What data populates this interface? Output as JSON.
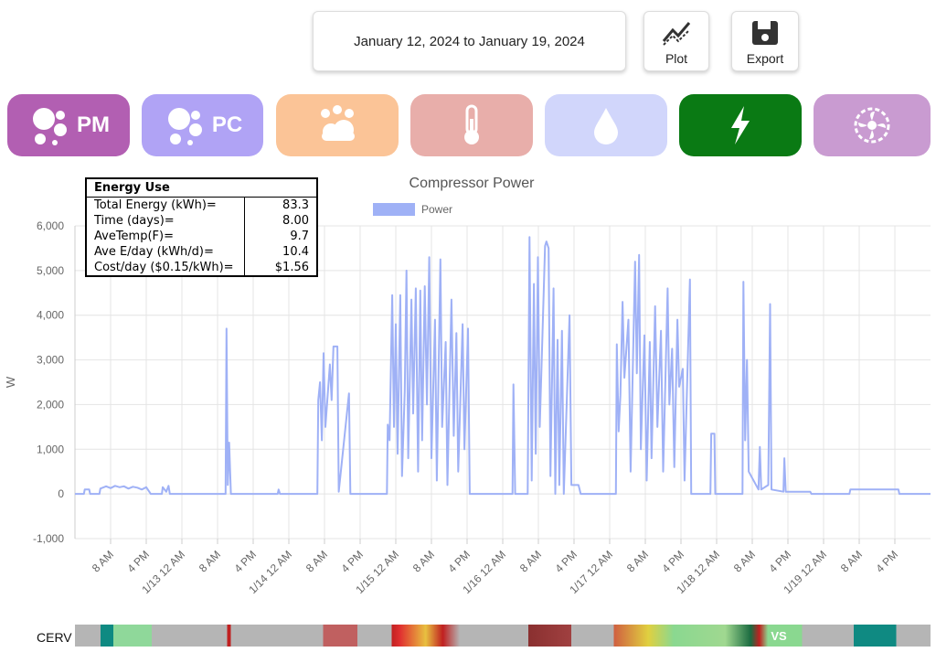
{
  "toolbar": {
    "date_range": "January 12, 2024 to January 19, 2024",
    "plot": "Plot",
    "export": "Export"
  },
  "tabs": {
    "pm": "PM",
    "pc": "PC"
  },
  "energy_table": {
    "title": "Energy Use",
    "rows": [
      [
        "Total Energy (kWh)=",
        "83.3"
      ],
      [
        "Time (days)=",
        "8.00"
      ],
      [
        "AveTemp(F)=",
        "9.7"
      ],
      [
        "Ave E/day (kWh/d)=",
        "10.4"
      ],
      [
        "Cost/day ($0.15/kWh)=",
        "$1.56"
      ]
    ]
  },
  "chart_data": {
    "type": "line",
    "title": "Compressor Power",
    "y_label": "W",
    "grid": true,
    "xlim": [
      0,
      192
    ],
    "xticks": [
      {
        "value": 8,
        "label": "8 AM"
      },
      {
        "value": 16,
        "label": "4 PM"
      },
      {
        "value": 24,
        "label": "1/13 12 AM"
      },
      {
        "value": 32,
        "label": "8 AM"
      },
      {
        "value": 40,
        "label": "4 PM"
      },
      {
        "value": 48,
        "label": "1/14 12 AM"
      },
      {
        "value": 56,
        "label": "8 AM"
      },
      {
        "value": 64,
        "label": "4 PM"
      },
      {
        "value": 72,
        "label": "1/15 12 AM"
      },
      {
        "value": 80,
        "label": "8 AM"
      },
      {
        "value": 88,
        "label": "4 PM"
      },
      {
        "value": 96,
        "label": "1/16 12 AM"
      },
      {
        "value": 104,
        "label": "8 AM"
      },
      {
        "value": 112,
        "label": "4 PM"
      },
      {
        "value": 120,
        "label": "1/17 12 AM"
      },
      {
        "value": 128,
        "label": "8 AM"
      },
      {
        "value": 136,
        "label": "4 PM"
      },
      {
        "value": 144,
        "label": "1/18 12 AM"
      },
      {
        "value": 152,
        "label": "8 AM"
      },
      {
        "value": 160,
        "label": "4 PM"
      },
      {
        "value": 168,
        "label": "1/19 12 AM"
      },
      {
        "value": 176,
        "label": "8 AM"
      },
      {
        "value": 184,
        "label": "4 PM"
      }
    ],
    "ylim": [
      -1000,
      6000
    ],
    "yticks": [
      {
        "value": -1000,
        "label": "-1,000"
      },
      0,
      {
        "value": 1000,
        "label": "1,000"
      },
      {
        "value": 2000,
        "label": "2,000"
      },
      {
        "value": 3000,
        "label": "3,000"
      },
      {
        "value": 4000,
        "label": "4,000"
      },
      {
        "value": 5000,
        "label": "5,000"
      },
      {
        "value": 6000,
        "label": "6,000"
      }
    ],
    "x": [
      0,
      2,
      2.2,
      3.2,
      3.4,
      5.5,
      5.7,
      7,
      8,
      9,
      10,
      11,
      12,
      13,
      14,
      15,
      16,
      17,
      19.5,
      19.7,
      20.5,
      21,
      21.3,
      33.8,
      34,
      34.3,
      34.6,
      35,
      45.5,
      45.7,
      46,
      54.4,
      54.6,
      55,
      55.4,
      55.8,
      56.2,
      57.2,
      57.6,
      58,
      58.9,
      59.2,
      61.5,
      61.8,
      70,
      70.2,
      70.6,
      71.2,
      71.6,
      72,
      72.4,
      73,
      73.4,
      74,
      74.4,
      74.8,
      75.5,
      75.9,
      76.5,
      77,
      77.5,
      77.9,
      78.5,
      79,
      79.5,
      80,
      80.8,
      81.2,
      82,
      82.4,
      83.2,
      83.6,
      84.5,
      85,
      85.6,
      86,
      87,
      87.4,
      88.2,
      88.6,
      98.2,
      98.4,
      98.8,
      101.6,
      102,
      102.5,
      103,
      103.4,
      103.9,
      104.3,
      105.5,
      105.8,
      106.3,
      106.7,
      107.4,
      107.8,
      108.3,
      108.7,
      109.3,
      109.7,
      111,
      111.4,
      113,
      113.5,
      121.4,
      121.6,
      122,
      122.4,
      122.9,
      123.3,
      124.2,
      124.7,
      125.7,
      126.1,
      126.6,
      127,
      127.8,
      128.3,
      129,
      129.4,
      130.2,
      130.7,
      131.5,
      132,
      133,
      133.4,
      134,
      134.5,
      135.2,
      135.6,
      136.4,
      136.8,
      138,
      138.3,
      142.6,
      142.8,
      143.5,
      143.7,
      149.8,
      150,
      150.4,
      150.8,
      151.2,
      153.4,
      153.7,
      154,
      155.6,
      156,
      156.3,
      159,
      159.2,
      159.5,
      165,
      165.3,
      173.8,
      174,
      184.8,
      185,
      192
    ],
    "series": [
      {
        "name": "Power",
        "color": "#9fb1f6",
        "values": [
          0,
          0,
          100,
          100,
          0,
          0,
          120,
          170,
          130,
          180,
          150,
          170,
          120,
          160,
          140,
          100,
          150,
          0,
          0,
          150,
          50,
          180,
          0,
          0,
          3700,
          200,
          1150,
          0,
          0,
          100,
          0,
          0,
          2100,
          2500,
          1200,
          3150,
          1500,
          2900,
          2100,
          3300,
          3300,
          50,
          2250,
          0,
          0,
          1550,
          1200,
          4450,
          1500,
          3800,
          900,
          4450,
          400,
          2300,
          5000,
          800,
          4350,
          1800,
          4600,
          500,
          4550,
          1200,
          4650,
          2000,
          5300,
          800,
          3900,
          300,
          5250,
          1500,
          3400,
          200,
          4350,
          1300,
          3600,
          500,
          3800,
          1000,
          3700,
          0,
          0,
          2450,
          0,
          0,
          5750,
          300,
          4700,
          900,
          5300,
          1500,
          5550,
          5650,
          5500,
          400,
          4600,
          0,
          3450,
          200,
          3650,
          0,
          4000,
          200,
          200,
          0,
          0,
          3350,
          1400,
          2200,
          4300,
          2600,
          3900,
          500,
          5200,
          2700,
          5350,
          1000,
          3550,
          300,
          3400,
          800,
          4200,
          1500,
          3650,
          500,
          4600,
          2000,
          3250,
          600,
          3900,
          2400,
          2800,
          300,
          4800,
          0,
          0,
          1350,
          1350,
          0,
          0,
          4750,
          1200,
          3000,
          500,
          100,
          1050,
          100,
          200,
          4250,
          100,
          50,
          800,
          50,
          50,
          0,
          0,
          100,
          100,
          0,
          0
        ]
      }
    ]
  },
  "status_bar": {
    "label": "CERV",
    "mode": "VS"
  }
}
